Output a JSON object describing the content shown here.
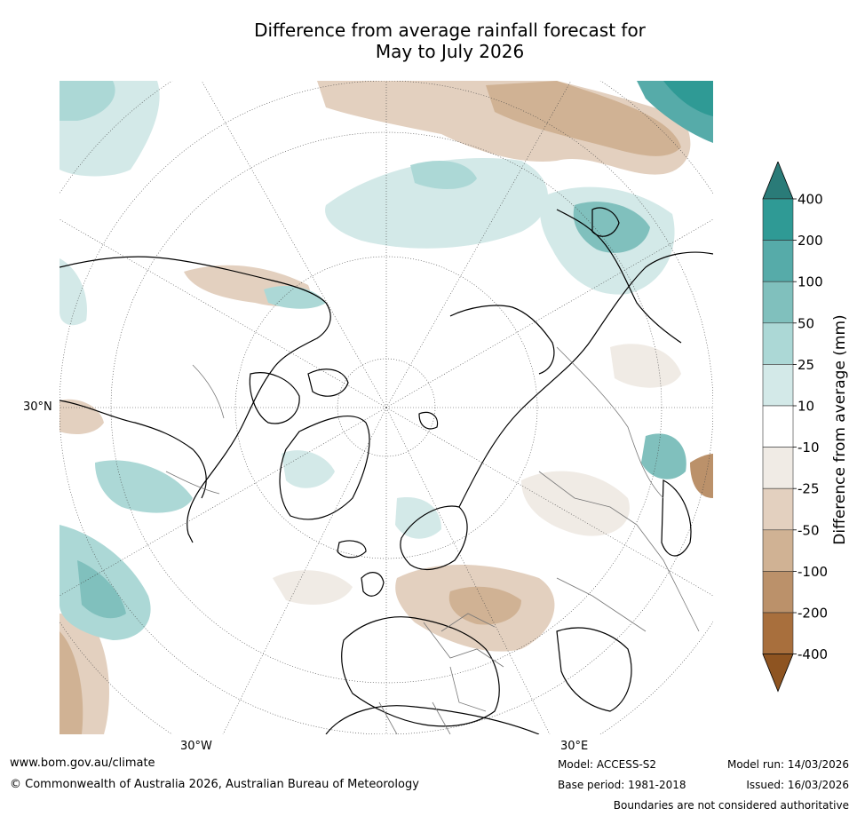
{
  "header": {
    "title_line1": "Difference from average rainfall forecast for",
    "title_line2": "May to July 2026"
  },
  "map": {
    "projection": "north-polar-stereographic",
    "labels": {
      "lat_label": "30°N",
      "lon_left": "30°W",
      "lon_right": "30°E"
    },
    "colors": {
      "ocean_land": "#ffffff",
      "coast": "#000000",
      "border": "#777777",
      "grid": "#444444"
    }
  },
  "colorbar": {
    "title": "Difference from average (mm)",
    "ticks": [
      "400",
      "200",
      "100",
      "50",
      "25",
      "10",
      "-10",
      "-25",
      "-50",
      "-100",
      "-200",
      "-400"
    ],
    "colors": [
      "#2a7b78",
      "#2f9a95",
      "#56aba9",
      "#80c0bd",
      "#acd8d6",
      "#d3e9e8",
      "#ffffff",
      "#f0ebe5",
      "#e3d0bf",
      "#d0b294",
      "#bb916a",
      "#a86f3d",
      "#8e5421"
    ]
  },
  "footer": {
    "website": "www.bom.gov.au/climate",
    "copyright": "© Commonwealth of Australia 2026, Australian Bureau of Meteorology",
    "model": "Model: ACCESS-S2",
    "base_period": "Base period: 1981-2018",
    "model_run": "Model run: 14/03/2026",
    "issued": "Issued: 16/03/2026",
    "disclaimer": "Boundaries are not considered authoritative"
  }
}
